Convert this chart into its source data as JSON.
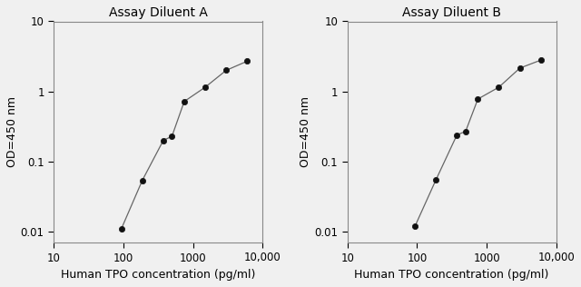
{
  "panel_A": {
    "title": "Assay Diluent A",
    "x_data": [
      93.75,
      187.5,
      375,
      500,
      750,
      1500,
      3000,
      6000
    ],
    "y_data": [
      0.011,
      0.054,
      0.2,
      0.23,
      0.72,
      1.15,
      2.0,
      2.7
    ]
  },
  "panel_B": {
    "title": "Assay Diluent B",
    "x_data": [
      93.75,
      187.5,
      375,
      500,
      750,
      1500,
      3000,
      6000
    ],
    "y_data": [
      0.012,
      0.055,
      0.24,
      0.27,
      0.78,
      1.15,
      2.15,
      2.8
    ]
  },
  "xlabel": "Human TPO concentration (pg/ml)",
  "ylabel": "OD=450 nm",
  "xlim": [
    10,
    10000
  ],
  "ylim": [
    0.007,
    10
  ],
  "line_color": "#666666",
  "marker_color": "#111111",
  "marker_size": 4.5,
  "background_color": "#f0f0f0",
  "title_fontsize": 10,
  "label_fontsize": 9,
  "tick_fontsize": 8.5
}
